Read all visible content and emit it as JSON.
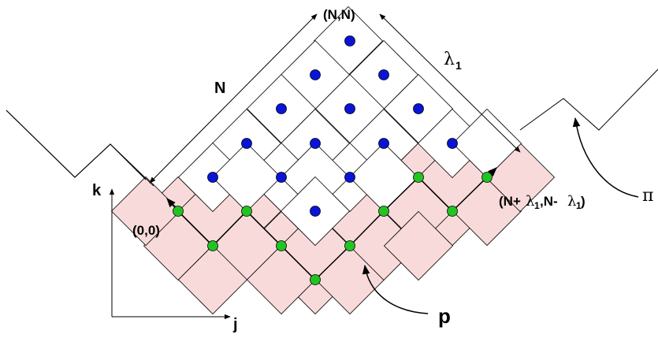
{
  "labels": {
    "top_corner": "(N,N)",
    "left_side": "N",
    "right_side": "λ",
    "right_side_sub": "1",
    "origin": "(0,0)",
    "right_corner_a": "(N+",
    "right_corner_lambda": "λ",
    "right_corner_sub1": "1",
    "right_corner_b": ",N-",
    "right_corner_lambda2": "λ",
    "right_corner_sub2": "1",
    "right_corner_c": " )",
    "axis_k": "k",
    "axis_j": "j",
    "path_label": "p",
    "boundary_label": "π"
  },
  "colors": {
    "blue_dot": "#0a14d6",
    "green_dot": "#22c422",
    "pink_cell": "#f9dada",
    "line": "#000000"
  }
}
